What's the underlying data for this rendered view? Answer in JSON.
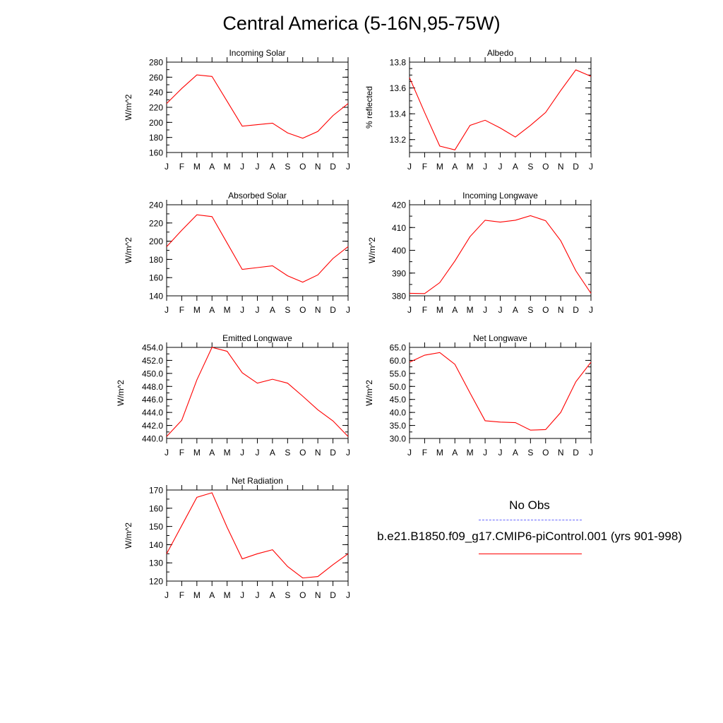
{
  "title": "Central America (5-16N,95-75W)",
  "months": [
    "J",
    "F",
    "M",
    "A",
    "M",
    "J",
    "J",
    "A",
    "S",
    "O",
    "N",
    "D",
    "J"
  ],
  "colors": {
    "model": "#ff0000",
    "obs": "#6666ff",
    "axis": "#000000"
  },
  "legend": {
    "obs_label": "No Obs",
    "model_label": "b.e21.B1850.f09_g17.CMIP6-piControl.001 (yrs 901-998)"
  },
  "chart_data": [
    {
      "type": "line",
      "title": "Incoming Solar",
      "ylabel": "W/m^2",
      "ylim": [
        160,
        280
      ],
      "major_ticks": [
        160,
        180,
        200,
        220,
        240,
        260,
        280
      ],
      "minor_step": 10,
      "tick_labels": [
        "160",
        "180",
        "200",
        "220",
        "240",
        "260",
        "280"
      ],
      "values": [
        225,
        245,
        263,
        261,
        228,
        195,
        197,
        199,
        186,
        179,
        188,
        209,
        225
      ]
    },
    {
      "type": "line",
      "title": "Albedo",
      "ylabel": "% reflected",
      "ylim": [
        13.1,
        13.8
      ],
      "major_ticks": [
        13.2,
        13.4,
        13.6,
        13.8
      ],
      "minor_step": 0.05,
      "tick_labels": [
        "13.2",
        "13.4",
        "13.6",
        "13.8"
      ],
      "values": [
        13.68,
        13.41,
        13.15,
        13.12,
        13.31,
        13.35,
        13.29,
        13.22,
        13.31,
        13.41,
        13.58,
        13.74,
        13.69
      ]
    },
    {
      "type": "line",
      "title": "Absorbed Solar",
      "ylabel": "W/m^2",
      "ylim": [
        140,
        240
      ],
      "major_ticks": [
        140,
        160,
        180,
        200,
        220,
        240
      ],
      "minor_step": 10,
      "tick_labels": [
        "140",
        "160",
        "180",
        "200",
        "220",
        "240"
      ],
      "values": [
        194,
        212,
        229,
        227,
        198,
        169,
        171,
        173,
        162,
        155,
        163,
        181,
        194
      ]
    },
    {
      "type": "line",
      "title": "Incoming Longwave",
      "ylabel": "W/m^2",
      "ylim": [
        380,
        420
      ],
      "major_ticks": [
        380,
        390,
        400,
        410,
        420
      ],
      "minor_step": 5,
      "tick_labels": [
        "380",
        "390",
        "400",
        "410",
        "420"
      ],
      "values": [
        381.1,
        381.0,
        385.8,
        395.3,
        406.0,
        413.2,
        412.4,
        413.2,
        415.2,
        413.0,
        404.2,
        391.0,
        381.1
      ]
    },
    {
      "type": "line",
      "title": "Emitted Longwave",
      "ylabel": "W/m^2",
      "ylim": [
        440,
        454
      ],
      "major_ticks": [
        440,
        442,
        444,
        446,
        448,
        450,
        452,
        454
      ],
      "minor_step": 1,
      "tick_labels": [
        "440.0",
        "442.0",
        "444.0",
        "446.0",
        "448.0",
        "450.0",
        "452.0",
        "454.0"
      ],
      "values": [
        440.3,
        442.8,
        449.0,
        454.0,
        453.4,
        450.1,
        448.5,
        449.1,
        448.5,
        446.5,
        444.4,
        442.7,
        440.3
      ]
    },
    {
      "type": "line",
      "title": "Net Longwave",
      "ylabel": "W/m^2",
      "ylim": [
        30,
        65
      ],
      "major_ticks": [
        30,
        35,
        40,
        45,
        50,
        55,
        60,
        65
      ],
      "minor_step": 2.5,
      "tick_labels": [
        "30.0",
        "35.0",
        "40.0",
        "45.0",
        "50.0",
        "55.0",
        "60.0",
        "65.0"
      ],
      "values": [
        59.3,
        62.0,
        63.0,
        58.5,
        47.5,
        36.8,
        36.3,
        36.1,
        33.2,
        33.4,
        40.0,
        51.8,
        59.3
      ]
    },
    {
      "type": "line",
      "title": "Net Radiation",
      "ylabel": "W/m^2",
      "ylim": [
        120,
        170
      ],
      "major_ticks": [
        120,
        130,
        140,
        150,
        160,
        170
      ],
      "minor_step": 5,
      "tick_labels": [
        "120",
        "130",
        "140",
        "150",
        "160",
        "170"
      ],
      "values": [
        135.0,
        150.5,
        166.0,
        168.5,
        149.5,
        132.2,
        135.0,
        137.2,
        128.0,
        121.7,
        122.5,
        129.0,
        135.0
      ]
    }
  ]
}
